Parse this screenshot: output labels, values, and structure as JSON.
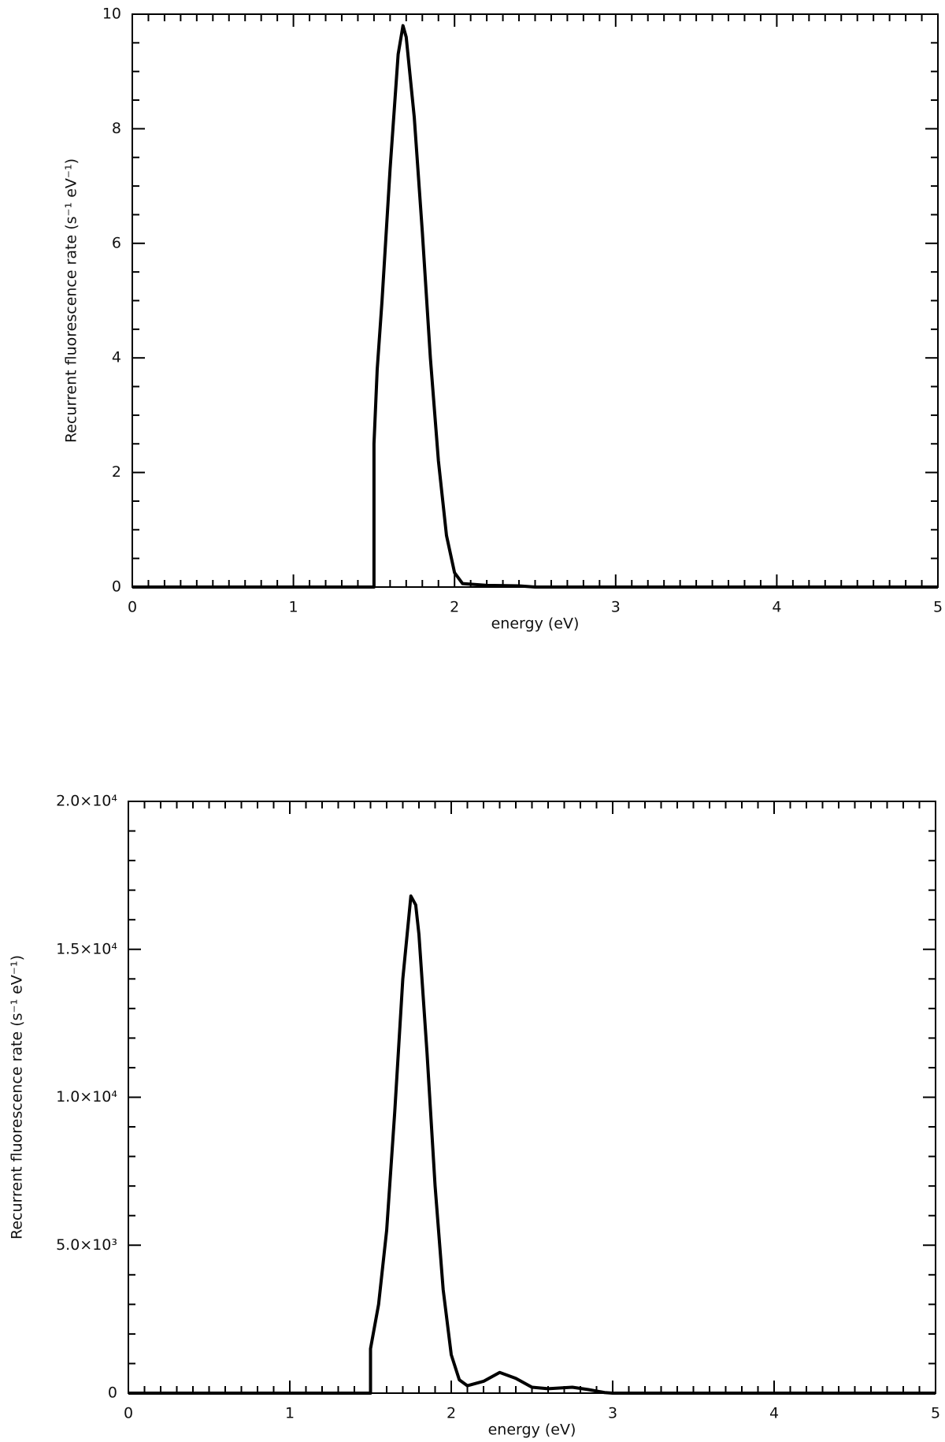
{
  "chart_data": [
    {
      "type": "line",
      "xlabel": "energy (eV)",
      "ylabel": "Recurrent fluorescence rate (s⁻¹ eV⁻¹)",
      "x": [
        0,
        1.5,
        1.5,
        1.52,
        1.55,
        1.6,
        1.65,
        1.68,
        1.7,
        1.75,
        1.8,
        1.85,
        1.9,
        1.95,
        2.0,
        2.05,
        2.2,
        2.4,
        2.5,
        5
      ],
      "values": [
        0,
        0,
        2.5,
        3.8,
        5.0,
        7.3,
        9.3,
        9.8,
        9.6,
        8.2,
        6.2,
        4.0,
        2.2,
        0.9,
        0.25,
        0.06,
        0.03,
        0.02,
        0,
        0
      ],
      "color": "#000000",
      "xlim": [
        0,
        5
      ],
      "xticks": [
        0,
        1,
        2,
        3,
        4,
        5
      ],
      "ylim": [
        0,
        10
      ],
      "yticks": [
        0,
        2,
        4,
        6,
        8,
        10
      ],
      "minor_ticks": {
        "x": 10,
        "y": 4
      }
    },
    {
      "type": "line",
      "xlabel": "energy (eV)",
      "ylabel": "Recurrent fluorescence rate (s⁻¹ eV⁻¹)",
      "x": [
        0,
        1.5,
        1.5,
        1.55,
        1.6,
        1.65,
        1.7,
        1.75,
        1.78,
        1.8,
        1.85,
        1.9,
        1.95,
        2.0,
        2.05,
        2.1,
        2.2,
        2.3,
        2.4,
        2.5,
        2.6,
        2.75,
        2.85,
        2.95,
        3.0,
        5
      ],
      "values": [
        0,
        0,
        1500,
        3000,
        5500,
        9500,
        14000,
        16800,
        16500,
        15500,
        11500,
        7000,
        3500,
        1300,
        450,
        250,
        400,
        700,
        500,
        200,
        150,
        200,
        120,
        20,
        0,
        0
      ],
      "color": "#000000",
      "xlim": [
        0,
        5
      ],
      "xticks": [
        0,
        1,
        2,
        3,
        4,
        5
      ],
      "ylim": [
        0,
        20000
      ],
      "yticks": [
        0,
        {
          "value": 5000,
          "label": "5.0×10³"
        },
        {
          "value": 10000,
          "label": "1.0×10⁴"
        },
        {
          "value": 15000,
          "label": "1.5×10⁴"
        },
        {
          "value": 20000,
          "label": "2.0×10⁴"
        }
      ],
      "minor_ticks": {
        "x": 10,
        "y": 5
      }
    }
  ]
}
